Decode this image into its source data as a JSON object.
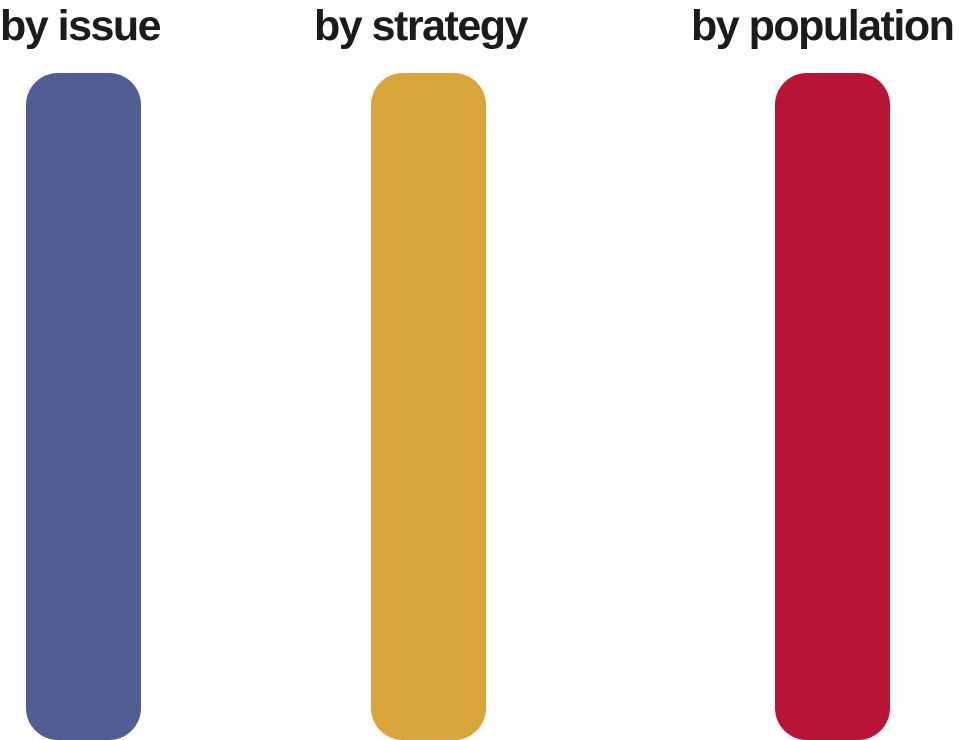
{
  "columns": [
    {
      "id": "issue",
      "label": "by issue",
      "color": "#505e93"
    },
    {
      "id": "strategy",
      "label": "by strategy",
      "color": "#d9a53b"
    },
    {
      "id": "population",
      "label": "by population",
      "color": "#b81436"
    }
  ]
}
